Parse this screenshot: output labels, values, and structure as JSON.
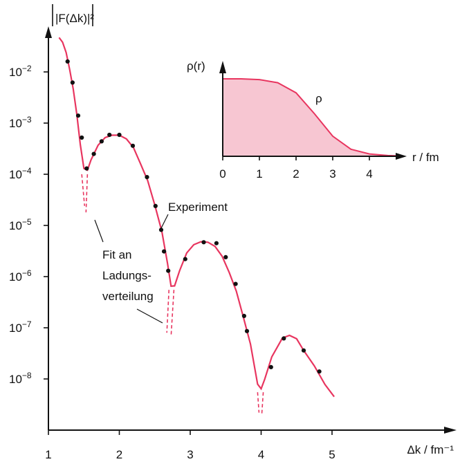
{
  "chart_data": [
    {
      "type": "scatter",
      "ylabel": "|F(Δk)|²",
      "xlabel": "Δk / fm⁻¹",
      "y_scale": "log",
      "xlim": [
        1,
        5.4
      ],
      "ylim": [
        1.5e-09,
        0.06
      ],
      "x_ticks": [
        "1",
        "2",
        "3",
        "4",
        "5"
      ],
      "y_ticks": [
        {
          "mantissa": "10",
          "exponent": "−2"
        },
        {
          "mantissa": "10",
          "exponent": "−3"
        },
        {
          "mantissa": "10",
          "exponent": "−4"
        },
        {
          "mantissa": "10",
          "exponent": "−5"
        },
        {
          "mantissa": "10",
          "exponent": "−6"
        },
        {
          "mantissa": "10",
          "exponent": "−7"
        },
        {
          "mantissa": "10",
          "exponent": "−8"
        }
      ],
      "series": [
        {
          "name": "Experiment",
          "kind": "points",
          "points": [
            [
              1.27,
              0.016
            ],
            [
              1.34,
              0.0062
            ],
            [
              1.42,
              0.0014
            ],
            [
              1.47,
              0.00052
            ],
            [
              1.54,
              0.00013
            ],
            [
              1.64,
              0.00025
            ],
            [
              1.75,
              0.00044
            ],
            [
              1.86,
              0.00059
            ],
            [
              2.0,
              0.00059
            ],
            [
              2.19,
              0.00036
            ],
            [
              2.39,
              8.8e-05
            ],
            [
              2.51,
              2.4e-05
            ],
            [
              2.59,
              8.2e-06
            ],
            [
              2.63,
              3.1e-06
            ],
            [
              2.69,
              1.3e-06
            ],
            [
              2.93,
              2.2e-06
            ],
            [
              3.19,
              4.7e-06
            ],
            [
              3.37,
              4.5e-06
            ],
            [
              3.5,
              2.4e-06
            ],
            [
              3.64,
              7.2e-07
            ],
            [
              3.76,
              1.7e-07
            ],
            [
              3.8,
              8.6e-08
            ],
            [
              4.14,
              1.7e-08
            ],
            [
              4.32,
              6.2e-08
            ],
            [
              4.6,
              3.6e-08
            ],
            [
              4.82,
              1.4e-08
            ]
          ]
        },
        {
          "name": "Fit an Ladungs-verteilung",
          "kind": "line",
          "points": [
            [
              1.15,
              0.047
            ],
            [
              1.2,
              0.038
            ],
            [
              1.25,
              0.024
            ],
            [
              1.3,
              0.011
            ],
            [
              1.35,
              0.0046
            ],
            [
              1.4,
              0.0015
            ],
            [
              1.45,
              0.00038
            ],
            [
              1.5,
              0.00013
            ],
            [
              1.55,
              0.00012
            ],
            [
              1.6,
              0.00019
            ],
            [
              1.7,
              0.00037
            ],
            [
              1.8,
              0.00052
            ],
            [
              1.9,
              0.00058
            ],
            [
              2.0,
              0.00058
            ],
            [
              2.1,
              0.00049
            ],
            [
              2.2,
              0.00033
            ],
            [
              2.3,
              0.00016
            ],
            [
              2.4,
              7.5e-05
            ],
            [
              2.5,
              2.5e-05
            ],
            [
              2.6,
              7.6e-06
            ],
            [
              2.68,
              1.8e-06
            ],
            [
              2.73,
              6.5e-07
            ],
            [
              2.78,
              6.6e-07
            ],
            [
              2.85,
              1.3e-06
            ],
            [
              2.95,
              2.9e-06
            ],
            [
              3.05,
              4.2e-06
            ],
            [
              3.15,
              4.8e-06
            ],
            [
              3.25,
              4.7e-06
            ],
            [
              3.35,
              3.9e-06
            ],
            [
              3.45,
              2.5e-06
            ],
            [
              3.55,
              1.2e-06
            ],
            [
              3.65,
              5.2e-07
            ],
            [
              3.75,
              1.6e-07
            ],
            [
              3.85,
              4.8e-08
            ],
            [
              3.95,
              7.9e-09
            ],
            [
              4.0,
              6.4e-09
            ],
            [
              4.05,
              9.8e-09
            ],
            [
              4.15,
              2.7e-08
            ],
            [
              4.3,
              6.3e-08
            ],
            [
              4.4,
              7.1e-08
            ],
            [
              4.5,
              6.1e-08
            ],
            [
              4.6,
              3.6e-08
            ],
            [
              4.75,
              1.8e-08
            ],
            [
              4.9,
              7.8e-09
            ],
            [
              5.03,
              4.5e-09
            ]
          ]
        },
        {
          "name": "fit-minima",
          "kind": "dashed",
          "segments": [
            [
              [
                1.47,
                0.0001
              ],
              [
                1.51,
                2.4e-05
              ]
            ],
            [
              [
                1.55,
                0.0001
              ],
              [
                1.53,
                1.8e-05
              ]
            ],
            [
              [
                2.7,
                5.5e-07
              ],
              [
                2.67,
                8e-08
              ]
            ],
            [
              [
                2.77,
                5.5e-07
              ],
              [
                2.73,
                7e-08
              ]
            ],
            [
              [
                3.95,
                5.5e-09
              ],
              [
                3.97,
                2.2e-09
              ]
            ],
            [
              [
                4.03,
                5.5e-09
              ],
              [
                4.01,
                2.1e-09
              ]
            ]
          ]
        }
      ],
      "annotations": {
        "experiment_label": "Experiment",
        "fit_label_lines": [
          "Fit an",
          "Ladungs-",
          "verteilung"
        ]
      }
    },
    {
      "type": "area",
      "ylabel": "ρ(r)",
      "xlabel": "r / fm",
      "xlim": [
        0,
        4.8
      ],
      "x_ticks": [
        "0",
        "1",
        "2",
        "3",
        "4"
      ],
      "curve_label": "ρ",
      "relative_density_at_r": [
        [
          0,
          1.0
        ],
        [
          0.5,
          1.0
        ],
        [
          1.0,
          0.99
        ],
        [
          1.5,
          0.95
        ],
        [
          2.0,
          0.82
        ],
        [
          2.5,
          0.55
        ],
        [
          3.0,
          0.26
        ],
        [
          3.5,
          0.09
        ],
        [
          4.0,
          0.03
        ],
        [
          4.5,
          0.01
        ],
        [
          4.8,
          0.005
        ]
      ]
    }
  ]
}
